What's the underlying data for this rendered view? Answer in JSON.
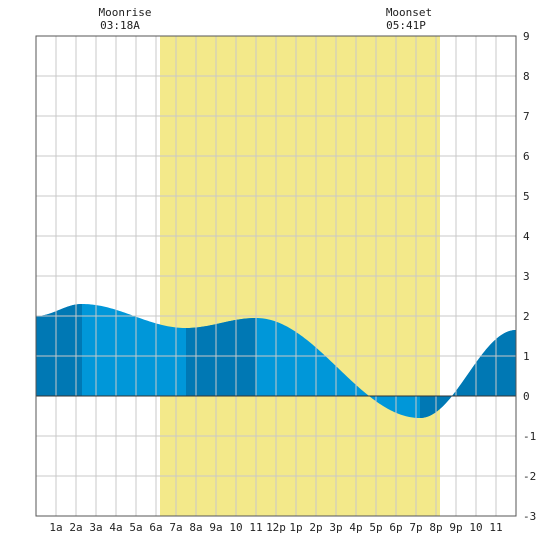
{
  "moon": {
    "rise_label": "Moonrise",
    "rise_time": "03:18A",
    "set_label": "Moonset",
    "set_time": "05:41P"
  },
  "colors": {
    "background": "#ffffff",
    "daylight": "#f3e98a",
    "tide_fill": "#0097d9",
    "tide_band": "#0078b4",
    "grid": "#c8c8c8",
    "zero_line": "#333333"
  },
  "chart_data": {
    "type": "area",
    "x_unit": "hour",
    "xlim": [
      0,
      24
    ],
    "ylim": [
      -3,
      9
    ],
    "grid": true,
    "y_ticks": [
      -3,
      -2,
      -1,
      0,
      1,
      2,
      3,
      4,
      5,
      6,
      7,
      8,
      9
    ],
    "x_ticks": [
      {
        "x": 1,
        "label": "1a"
      },
      {
        "x": 2,
        "label": "2a"
      },
      {
        "x": 3,
        "label": "3a"
      },
      {
        "x": 4,
        "label": "4a"
      },
      {
        "x": 5,
        "label": "5a"
      },
      {
        "x": 6,
        "label": "6a"
      },
      {
        "x": 7,
        "label": "7a"
      },
      {
        "x": 8,
        "label": "8a"
      },
      {
        "x": 9,
        "label": "9a"
      },
      {
        "x": 10,
        "label": "10"
      },
      {
        "x": 11,
        "label": "11"
      },
      {
        "x": 12,
        "label": "12p"
      },
      {
        "x": 13,
        "label": "1p"
      },
      {
        "x": 14,
        "label": "2p"
      },
      {
        "x": 15,
        "label": "3p"
      },
      {
        "x": 16,
        "label": "4p"
      },
      {
        "x": 17,
        "label": "5p"
      },
      {
        "x": 18,
        "label": "6p"
      },
      {
        "x": 19,
        "label": "7p"
      },
      {
        "x": 20,
        "label": "8p"
      },
      {
        "x": 21,
        "label": "9p"
      },
      {
        "x": 22,
        "label": "10"
      },
      {
        "x": 23,
        "label": "11"
      }
    ],
    "daylight_span": [
      6.2,
      20.2
    ],
    "extrema": [
      {
        "x": 0,
        "y": 2.0
      },
      {
        "x": 2.3,
        "y": 2.3
      },
      {
        "x": 7.5,
        "y": 1.7
      },
      {
        "x": 11.0,
        "y": 1.95
      },
      {
        "x": 19.2,
        "y": -0.55
      },
      {
        "x": 24,
        "y": 1.65
      }
    ],
    "bands": [
      [
        0,
        2.3
      ],
      [
        7.5,
        11.0
      ],
      [
        19.2,
        24
      ]
    ]
  }
}
